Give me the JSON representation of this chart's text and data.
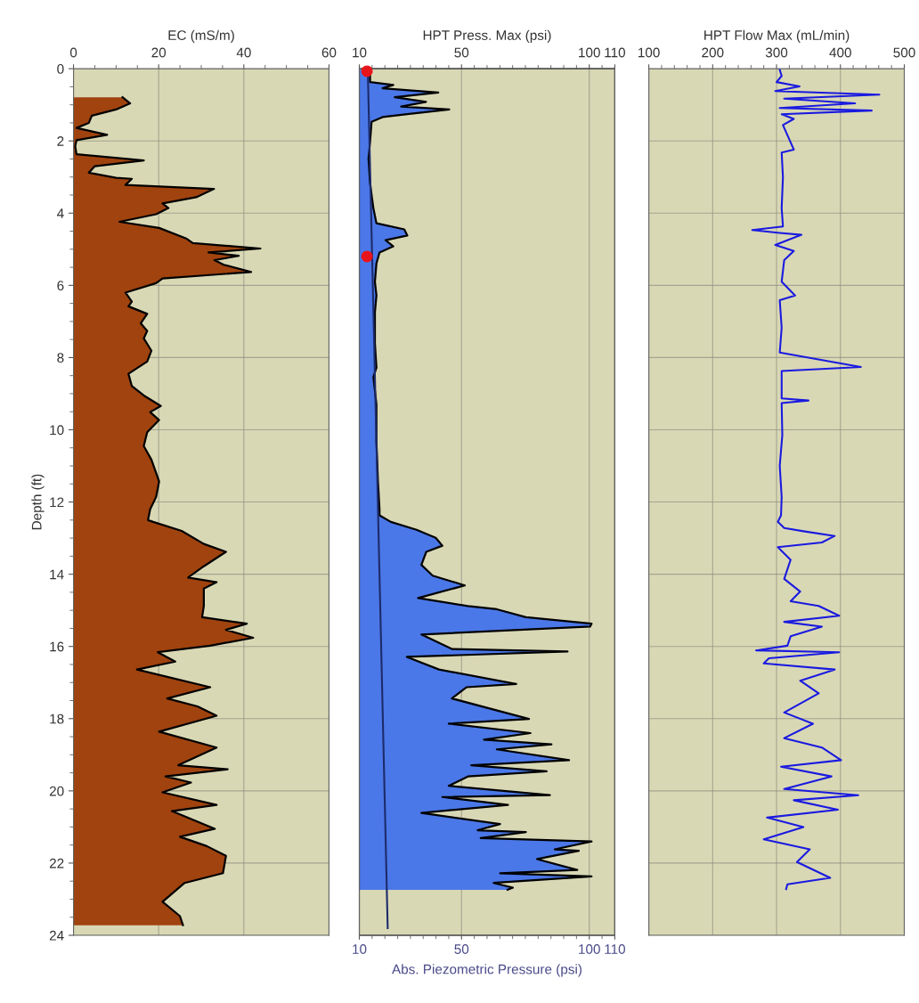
{
  "chart_data": [
    {
      "type": "area",
      "orientation": "horizontal",
      "xlabel": "EC (mS/m)",
      "ylabel": "Depth (ft)",
      "xlim": [
        0,
        60
      ],
      "ylim": [
        24,
        0
      ],
      "xticks": [
        0,
        {
          "value": 5,
          "label": null
        },
        {
          "value": 10,
          "label": null
        },
        {
          "value": 15,
          "label": null
        },
        20,
        {
          "value": 25,
          "label": null
        },
        {
          "value": 30,
          "label": null
        },
        {
          "value": 35,
          "label": null
        },
        40,
        {
          "value": 45,
          "label": null
        },
        {
          "value": 50,
          "label": null
        },
        {
          "value": 55,
          "label": null
        },
        60
      ],
      "yticks": [
        0,
        {
          "value": 0.5,
          "label": null
        },
        {
          "value": 1,
          "label": null
        },
        {
          "value": 1.5,
          "label": null
        },
        2,
        {
          "value": 2.5,
          "label": null
        },
        {
          "value": 3,
          "label": null
        },
        {
          "value": 3.5,
          "label": null
        },
        4,
        {
          "value": 4.5,
          "label": null
        },
        {
          "value": 5,
          "label": null
        },
        {
          "value": 5.5,
          "label": null
        },
        6,
        {
          "value": 6.5,
          "label": null
        },
        {
          "value": 7,
          "label": null
        },
        {
          "value": 7.5,
          "label": null
        },
        8,
        {
          "value": 8.5,
          "label": null
        },
        {
          "value": 9,
          "label": null
        },
        {
          "value": 9.5,
          "label": null
        },
        10,
        {
          "value": 10.5,
          "label": null
        },
        {
          "value": 11,
          "label": null
        },
        {
          "value": 11.5,
          "label": null
        },
        12,
        {
          "value": 12.5,
          "label": null
        },
        {
          "value": 13,
          "label": null
        },
        {
          "value": 13.5,
          "label": null
        },
        14,
        {
          "value": 14.5,
          "label": null
        },
        {
          "value": 15,
          "label": null
        },
        {
          "value": 15.5,
          "label": null
        },
        16,
        {
          "value": 16.5,
          "label": null
        },
        {
          "value": 17,
          "label": null
        },
        {
          "value": 17.5,
          "label": null
        },
        18,
        {
          "value": 18.5,
          "label": null
        },
        {
          "value": 19,
          "label": null
        },
        {
          "value": 19.5,
          "label": null
        },
        20,
        {
          "value": 20.5,
          "label": null
        },
        {
          "value": 21,
          "label": null
        },
        {
          "value": 21.5,
          "label": null
        },
        22,
        {
          "value": 22.5,
          "label": null
        },
        {
          "value": 23,
          "label": null
        },
        {
          "value": 23.5,
          "label": null
        },
        24
      ],
      "grid": true,
      "series": [
        {
          "color": "#a0430f",
          "x": [
            0.79,
            0.96,
            1.13,
            1.3,
            1.5,
            1.64,
            1.83,
            1.98,
            2.15,
            2.37,
            2.54,
            2.7,
            2.88,
            3.02,
            3.05,
            3.22,
            3.33,
            3.56,
            3.73,
            3.86,
            4.03,
            4.24,
            4.41,
            4.71,
            4.83,
            4.98,
            5.09,
            5.18,
            5.3,
            5.43,
            5.63,
            5.81,
            5.94,
            6.2,
            6.45,
            6.58,
            6.79,
            7.05,
            7.26,
            7.47,
            7.81,
            8.11,
            8.45,
            8.79,
            9.05,
            9.34,
            9.51,
            9.73,
            10.07,
            10.45,
            10.83,
            11.43,
            11.86,
            12.2,
            12.5,
            12.55,
            12.8,
            13.16,
            13.38,
            13.78,
            14.09,
            14.22,
            14.4,
            14.88,
            15.19,
            15.37,
            15.54,
            15.76,
            15.98,
            16.16,
            16.42,
            16.64,
            17.13,
            17.44,
            17.66,
            17.92,
            18.36,
            18.8,
            19.29,
            19.4,
            19.6,
            19.77,
            20.04,
            20.39,
            20.56,
            21.05,
            21.27,
            21.53,
            21.8,
            22.28,
            22.55,
            23.07,
            23.47,
            23.72
          ],
          "values": [
            11.5,
            13.3,
            10,
            4.3,
            3.6,
            0.7,
            7.9,
            0.7,
            0.4,
            0.7,
            16.5,
            5,
            3.6,
            10,
            13.7,
            12.2,
            33,
            28.8,
            20.9,
            22.3,
            19.4,
            10.8,
            20.1,
            26.6,
            28,
            43.9,
            31.7,
            38.8,
            33.1,
            35.3,
            41.7,
            20.9,
            19.4,
            12.2,
            13.7,
            12.9,
            17.3,
            15.8,
            17.3,
            16.5,
            18.3,
            17.3,
            12.9,
            13.7,
            16.5,
            20.5,
            18,
            20.1,
            17.3,
            16.5,
            18.3,
            20.1,
            19.4,
            18,
            17.5,
            18.7,
            25.4,
            30.6,
            35.8,
            30.6,
            26.9,
            33.6,
            30.6,
            30.6,
            30.2,
            40.7,
            35.8,
            42.2,
            32.1,
            19.8,
            23.9,
            14.9,
            32.1,
            22,
            29.1,
            33.6,
            20.1,
            33.6,
            24.6,
            36.2,
            21.6,
            27.6,
            20.9,
            33.6,
            23.1,
            33.2,
            25,
            31.3,
            35.8,
            35.1,
            26.1,
            20.9,
            25,
            25.7
          ]
        }
      ]
    },
    {
      "type": "area",
      "orientation": "horizontal",
      "xlabel": "Abs. Piezometric Pressure (psi)",
      "x2label": "HPT Press. Max (psi)",
      "xlim": [
        10,
        110
      ],
      "x2lim": [
        10,
        110
      ],
      "ylim": [
        24,
        0
      ],
      "xticks": [
        10,
        {
          "value": 15,
          "label": null
        },
        {
          "value": 20,
          "label": null
        },
        {
          "value": 25,
          "label": null
        },
        {
          "value": 30,
          "label": null
        },
        {
          "value": 35,
          "label": null
        },
        {
          "value": 40,
          "label": null
        },
        {
          "value": 45,
          "label": null
        },
        50,
        {
          "value": 55,
          "label": null
        },
        {
          "value": 60,
          "label": null
        },
        {
          "value": 65,
          "label": null
        },
        {
          "value": 70,
          "label": null
        },
        {
          "value": 75,
          "label": null
        },
        {
          "value": 80,
          "label": null
        },
        {
          "value": 85,
          "label": null
        },
        {
          "value": 90,
          "label": null
        },
        {
          "value": 95,
          "label": null
        },
        100,
        {
          "value": 105,
          "label": null
        },
        110
      ],
      "x2ticks": [
        10,
        {
          "value": 15,
          "label": null
        },
        {
          "value": 20,
          "label": null
        },
        {
          "value": 25,
          "label": null
        },
        {
          "value": 30,
          "label": null
        },
        {
          "value": 35,
          "label": null
        },
        {
          "value": 40,
          "label": null
        },
        {
          "value": 45,
          "label": null
        },
        50,
        {
          "value": 55,
          "label": null
        },
        {
          "value": 60,
          "label": null
        },
        {
          "value": 65,
          "label": null
        },
        {
          "value": 70,
          "label": null
        },
        {
          "value": 75,
          "label": null
        },
        {
          "value": 80,
          "label": null
        },
        {
          "value": 85,
          "label": null
        },
        {
          "value": 90,
          "label": null
        },
        {
          "value": 95,
          "label": null
        },
        100,
        {
          "value": 105,
          "label": null
        },
        110
      ],
      "yticks": [
        0,
        2,
        4,
        6,
        8,
        10,
        12,
        14,
        16,
        18,
        20,
        22,
        24
      ],
      "tick_labels": "x",
      "grid": true,
      "series": [
        {
          "axis": "x2",
          "color": "#4b78e8",
          "x": [
            0.03,
            0.37,
            0.45,
            0.54,
            0.66,
            0.79,
            0.92,
            1.05,
            1.13,
            1.26,
            1.34,
            1.47,
            2.03,
            2.49,
            3.17,
            3.86,
            4.28,
            4.45,
            4.62,
            4.75,
            4.92,
            5.09,
            5.39,
            5.9,
            6.28,
            6.75,
            7.6,
            8.28,
            8.54,
            9.3,
            10.32,
            11.43,
            12.2,
            12.37,
            12.55,
            12.77,
            12.99,
            13.21,
            13.38,
            13.74,
            14.04,
            14.31,
            14.66,
            14.88,
            14.97,
            15.19,
            15.37,
            15.45,
            15.67,
            16.07,
            16.14,
            16.29,
            16.64,
            17.04,
            17.13,
            17.44,
            18.01,
            18.14,
            18.4,
            18.58,
            18.71,
            18.85,
            19.15,
            19.29,
            19.46,
            19.6,
            19.86,
            20.12,
            20.17,
            20.39,
            20.61,
            20.92,
            21.09,
            21.14,
            21.31,
            21.4,
            21.62,
            21.66,
            21.89,
            22.19,
            22.28,
            22.37,
            22.55,
            22.68,
            22.74
          ],
          "values": [
            14.2,
            14.2,
            23.3,
            19.1,
            40.9,
            23.9,
            36.1,
            26.4,
            45.2,
            28.8,
            19.1,
            14.8,
            14.2,
            13.6,
            14.2,
            15.5,
            16.7,
            27.6,
            28.8,
            20.3,
            23.3,
            17.9,
            16.7,
            16.1,
            16.7,
            16.1,
            16.1,
            16.7,
            15.5,
            16.7,
            16.7,
            17.3,
            17.9,
            17.9,
            22.3,
            32.4,
            39.9,
            42.5,
            36.2,
            34.3,
            38.7,
            51.3,
            33,
            52.5,
            63.8,
            75.2,
            100.9,
            100.3,
            34.3,
            46.2,
            91.5,
            28.6,
            41.2,
            71.4,
            51.9,
            46.2,
            76.4,
            45,
            77,
            58.8,
            85.2,
            63.8,
            92.1,
            53.8,
            83.3,
            52.5,
            45,
            84.6,
            42.5,
            68.2,
            34.3,
            65.1,
            56.3,
            75.2,
            57.5,
            100.9,
            86.5,
            95.9,
            79.6,
            95.3,
            65.1,
            100.9,
            62.6,
            70.1,
            68
          ]
        },
        {
          "type": "line",
          "color": "#1c2b6b",
          "x": [
            0,
            23.8
          ],
          "values": [
            13.3,
            21.1
          ]
        },
        {
          "type": "scatter",
          "color": "#e8141c",
          "marker": "circle",
          "x": [
            0.07,
            5.2
          ],
          "values": [
            13.0,
            13.0
          ]
        }
      ]
    },
    {
      "type": "line",
      "orientation": "horizontal",
      "xlabel": "HPT Flow Max (mL/min)",
      "xlim": [
        100,
        500
      ],
      "ylim": [
        24,
        0
      ],
      "xticks": [
        100,
        {
          "value": 120,
          "label": null
        },
        {
          "value": 140,
          "label": null
        },
        {
          "value": 160,
          "label": null
        },
        {
          "value": 180,
          "label": null
        },
        200,
        {
          "value": 220,
          "label": null
        },
        {
          "value": 240,
          "label": null
        },
        {
          "value": 260,
          "label": null
        },
        {
          "value": 280,
          "label": null
        },
        300,
        {
          "value": 320,
          "label": null
        },
        {
          "value": 340,
          "label": null
        },
        {
          "value": 360,
          "label": null
        },
        {
          "value": 380,
          "label": null
        },
        400,
        {
          "value": 420,
          "label": null
        },
        {
          "value": 440,
          "label": null
        },
        {
          "value": 460,
          "label": null
        },
        {
          "value": 480,
          "label": null
        },
        500
      ],
      "yticks": [
        0,
        2,
        4,
        6,
        8,
        10,
        12,
        14,
        16,
        18,
        20,
        22,
        24
      ],
      "tick_labels": "x",
      "grid": true,
      "series": [
        {
          "color": "#1a1ae0",
          "x": [
            0.03,
            0.2,
            0.37,
            0.49,
            0.62,
            0.72,
            0.83,
            0.96,
            1.09,
            1.16,
            1.26,
            1.39,
            1.56,
            2.24,
            2.32,
            3.0,
            3.86,
            4.37,
            4.47,
            4.55,
            4.6,
            4.88,
            5.05,
            5.3,
            5.9,
            6.28,
            6.41,
            7.17,
            7.86,
            8.26,
            8.37,
            9.13,
            9.19,
            9.26,
            10.15,
            11.0,
            11.86,
            12.37,
            12.55,
            12.72,
            12.81,
            12.94,
            13.12,
            13.25,
            13.6,
            14.13,
            14.48,
            14.75,
            14.88,
            15.15,
            15.32,
            15.45,
            15.72,
            15.98,
            16.11,
            16.16,
            16.33,
            16.47,
            16.64,
            16.95,
            17.3,
            17.83,
            18.14,
            18.54,
            18.8,
            19.15,
            19.33,
            19.6,
            19.95,
            20.12,
            20.26,
            20.52,
            20.74,
            21.0,
            21.34,
            21.62,
            21.97,
            22.41,
            22.59,
            22.72
          ],
          "values": [
            305,
            308,
            300,
            336,
            298,
            461,
            312,
            423,
            305,
            449,
            308,
            327,
            310,
            327,
            308,
            310,
            308,
            310,
            262,
            305,
            339,
            298,
            327,
            312,
            308,
            329,
            305,
            308,
            305,
            432,
            308,
            308,
            350,
            308,
            309,
            305,
            308,
            307,
            302,
            312,
            342,
            391,
            371,
            302,
            322,
            312,
            337,
            322,
            366,
            398,
            312,
            371,
            322,
            317,
            268,
            398,
            288,
            280,
            391,
            337,
            366,
            312,
            357,
            312,
            371,
            401,
            307,
            386,
            312,
            428,
            327,
            396,
            285,
            342,
            280,
            352,
            332,
            384,
            317,
            315
          ]
        }
      ]
    }
  ]
}
